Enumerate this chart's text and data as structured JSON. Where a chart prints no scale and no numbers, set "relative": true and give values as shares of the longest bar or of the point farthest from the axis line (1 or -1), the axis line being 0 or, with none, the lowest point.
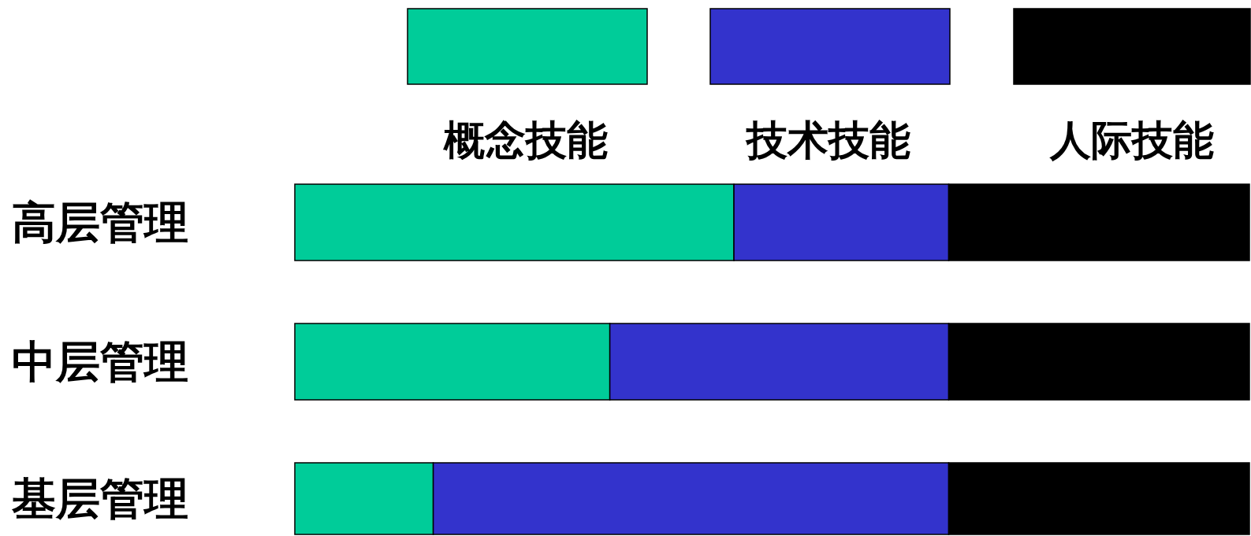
{
  "chart_data": {
    "type": "bar",
    "orientation": "horizontal",
    "stacked": true,
    "relative": true,
    "legend": "top",
    "categories": [
      "高层管理",
      "中层管理",
      "基层管理"
    ],
    "series": [
      {
        "name": "概念技能",
        "color": "#00cc99",
        "values": [
          0.46,
          0.33,
          0.145
        ]
      },
      {
        "name": "技术技能",
        "color": "#3333cc",
        "values": [
          0.225,
          0.355,
          0.54
        ]
      },
      {
        "name": "人际技能",
        "color": "#000000",
        "values": [
          0.315,
          0.315,
          0.315
        ]
      }
    ]
  }
}
